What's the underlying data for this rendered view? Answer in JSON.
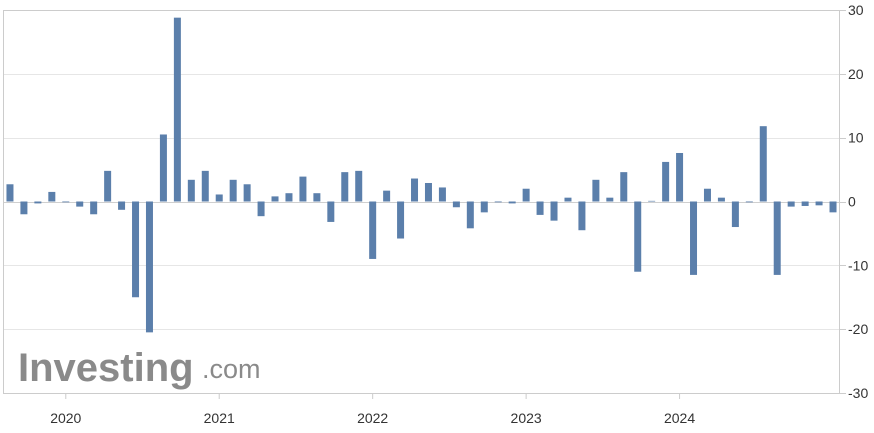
{
  "chart_data": {
    "type": "bar",
    "title": "",
    "xlabel": "",
    "ylabel": "",
    "ylim": [
      -30,
      30
    ],
    "y_ticks": [
      30,
      20,
      10,
      0,
      -10,
      -20,
      -30
    ],
    "y_axis_position": "right",
    "x_tick_labels": [
      "2020",
      "2021",
      "2022",
      "2023",
      "2024"
    ],
    "grid": true,
    "bar_color": "#5b7fab",
    "series": [
      {
        "values": [
          2.7,
          -2.0,
          -0.3,
          1.5,
          0.0,
          -0.8,
          -2.0,
          4.8,
          -1.3,
          -15.0,
          -20.5,
          10.5,
          28.8,
          3.4,
          4.8,
          1.1,
          3.4,
          2.7,
          -2.3,
          0.8,
          1.3,
          3.9,
          1.3,
          -3.2,
          4.6,
          4.8,
          -9.0,
          1.7,
          -5.8,
          3.6,
          2.9,
          2.2,
          -0.9,
          -4.2,
          -1.7,
          0.0,
          -0.3,
          2.0,
          -2.1,
          -3.0,
          0.6,
          -4.5,
          3.4,
          0.6,
          4.6,
          -11.0,
          0.1,
          6.2,
          7.6,
          -11.5,
          2.0,
          0.6,
          -4.0,
          0.0,
          11.8,
          -11.5,
          -0.8,
          -0.7,
          -0.6,
          -1.7
        ]
      }
    ]
  },
  "watermark": {
    "brand": "Investing",
    "suffix": ".com"
  }
}
